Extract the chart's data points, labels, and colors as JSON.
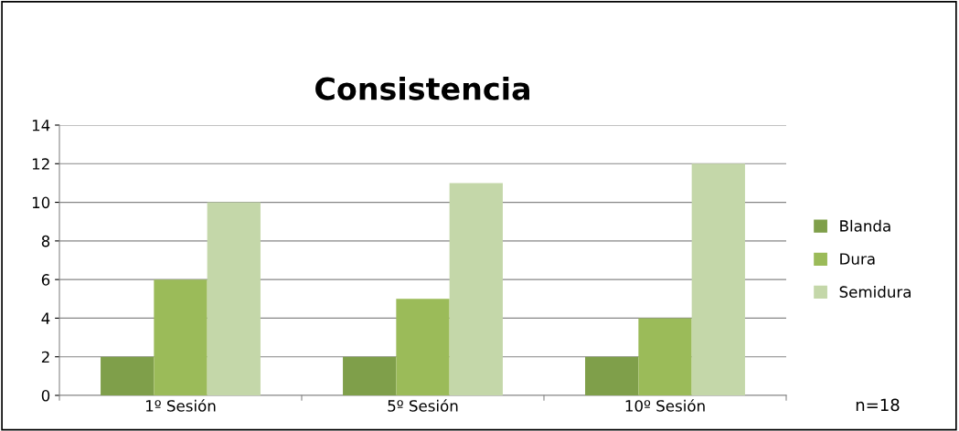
{
  "chart_data": {
    "type": "bar",
    "title": "Consistencia",
    "categories": [
      "1º Sesión",
      "5º Sesión",
      "10º Sesión"
    ],
    "series": [
      {
        "name": "Blanda",
        "color": "#7f9f4a",
        "values": [
          2,
          2,
          2
        ]
      },
      {
        "name": "Dura",
        "color": "#9bbb59",
        "values": [
          6,
          5,
          4
        ]
      },
      {
        "name": "Semidura",
        "color": "#c4d7a9",
        "values": [
          10,
          11,
          12
        ]
      }
    ],
    "ylim": [
      0,
      14
    ],
    "yticks": [
      0,
      2,
      4,
      6,
      8,
      10,
      12,
      14
    ],
    "grid": "y",
    "legend": "right",
    "annotations": [
      "n=18"
    ]
  }
}
